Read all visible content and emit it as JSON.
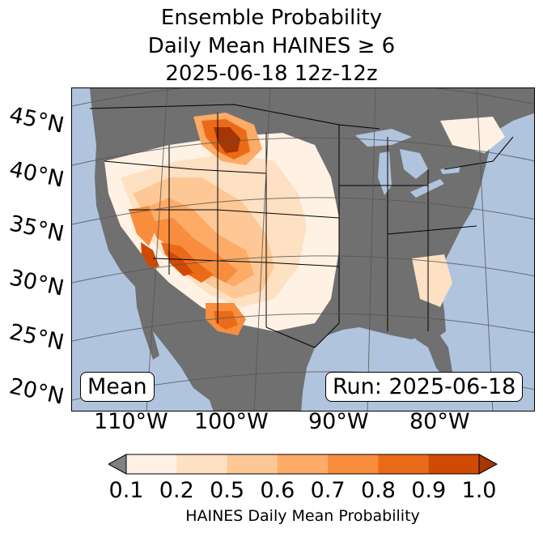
{
  "title": {
    "line1": "Ensemble Probability",
    "line2": "Daily Mean HAINES ≥ 6",
    "line3": "2025-06-18 12z-12z"
  },
  "map": {
    "lat_labels": [
      "45°N",
      "40°N",
      "35°N",
      "30°N",
      "25°N",
      "20°N"
    ],
    "lon_labels": [
      "110°W",
      "100°W",
      "90°W",
      "80°W"
    ],
    "mean_box": "Mean",
    "run_box": "Run: 2025-06-18",
    "colors": {
      "ocean": "#b0c4de",
      "missing_land": "#707070",
      "borders": "#000000",
      "gridlines": "#555555"
    }
  },
  "colorbar": {
    "ticks": [
      "0.1",
      "0.2",
      "0.5",
      "0.6",
      "0.7",
      "0.8",
      "0.9",
      "1.0"
    ],
    "label": "HAINES Daily Mean Probability",
    "under_color": "#808080",
    "colors": [
      "#fff2e5",
      "#fee0c3",
      "#fdc895",
      "#fdab67",
      "#f88d3d",
      "#eb6a18",
      "#d14a04",
      "#a63603"
    ]
  }
}
